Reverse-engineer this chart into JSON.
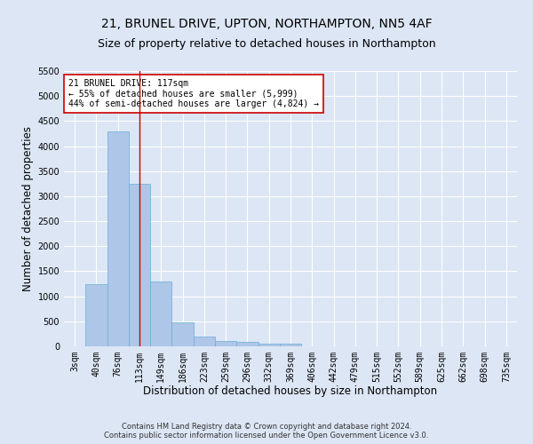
{
  "title_line1": "21, BRUNEL DRIVE, UPTON, NORTHAMPTON, NN5 4AF",
  "title_line2": "Size of property relative to detached houses in Northampton",
  "xlabel": "Distribution of detached houses by size in Northampton",
  "ylabel": "Number of detached properties",
  "footnote": "Contains HM Land Registry data © Crown copyright and database right 2024.\nContains public sector information licensed under the Open Government Licence v3.0.",
  "categories": [
    "3sqm",
    "40sqm",
    "76sqm",
    "113sqm",
    "149sqm",
    "186sqm",
    "223sqm",
    "259sqm",
    "296sqm",
    "332sqm",
    "369sqm",
    "406sqm",
    "442sqm",
    "479sqm",
    "515sqm",
    "552sqm",
    "589sqm",
    "625sqm",
    "662sqm",
    "698sqm",
    "735sqm"
  ],
  "values": [
    0,
    1250,
    4300,
    3250,
    1300,
    480,
    200,
    110,
    80,
    60,
    50,
    0,
    0,
    0,
    0,
    0,
    0,
    0,
    0,
    0,
    0
  ],
  "bar_color": "#aec6e8",
  "bar_edge_color": "#6aaed6",
  "vline_x_idx": 3,
  "vline_color": "#cc0000",
  "annotation_text": "21 BRUNEL DRIVE: 117sqm\n← 55% of detached houses are smaller (5,999)\n44% of semi-detached houses are larger (4,824) →",
  "annotation_box_color": "#ffffff",
  "annotation_box_edge": "#cc0000",
  "ylim": [
    0,
    5500
  ],
  "yticks": [
    0,
    500,
    1000,
    1500,
    2000,
    2500,
    3000,
    3500,
    4000,
    4500,
    5000,
    5500
  ],
  "background_color": "#dce6f5",
  "plot_background": "#dce6f5",
  "grid_color": "#ffffff",
  "title_fontsize": 10,
  "subtitle_fontsize": 9,
  "axis_label_fontsize": 8.5,
  "tick_fontsize": 7,
  "annotation_fontsize": 7,
  "footnote_fontsize": 6
}
